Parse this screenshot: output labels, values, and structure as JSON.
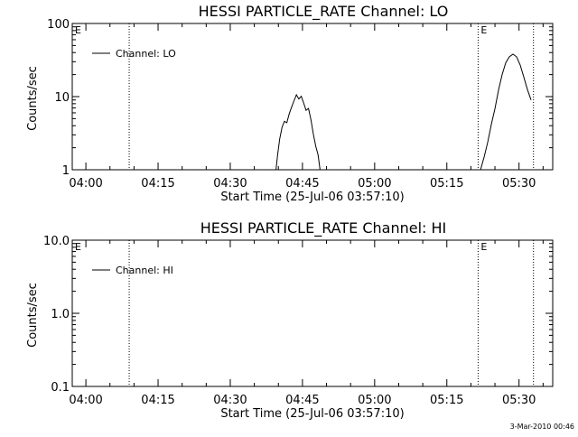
{
  "chart_data": [
    {
      "type": "line",
      "title": "HESSI PARTICLE_RATE Channel: LO",
      "xlabel": "Start Time (25-Jul-06 03:57:10)",
      "ylabel": "Counts/sec",
      "y_scale": "log",
      "ylim": [
        1,
        100
      ],
      "xlim": [
        "03:57:10",
        "05:37:00"
      ],
      "x_ticks": [
        "04:00",
        "04:15",
        "04:30",
        "04:45",
        "05:00",
        "05:15",
        "05:30"
      ],
      "y_ticks": [
        "1",
        "10",
        "100"
      ],
      "legend": "top-left",
      "markers": [
        {
          "label": "E",
          "x": "03:57:10"
        },
        {
          "label": "",
          "x": "04:09:00"
        },
        {
          "label": "E",
          "x": "05:21:30"
        },
        {
          "label": "",
          "x": "05:33:00"
        }
      ],
      "series": [
        {
          "name": "Channel: LO",
          "segments": [
            [
              {
                "x": "04:39:30",
                "y": 1.0
              },
              {
                "x": "04:39:50",
                "y": 1.6
              },
              {
                "x": "04:40:15",
                "y": 2.6
              },
              {
                "x": "04:40:45",
                "y": 3.8
              },
              {
                "x": "04:41:15",
                "y": 4.6
              },
              {
                "x": "04:41:45",
                "y": 4.4
              },
              {
                "x": "04:42:15",
                "y": 5.8
              },
              {
                "x": "04:42:45",
                "y": 7.2
              },
              {
                "x": "04:43:15",
                "y": 8.8
              },
              {
                "x": "04:43:45",
                "y": 10.6
              },
              {
                "x": "04:44:15",
                "y": 9.3
              },
              {
                "x": "04:44:45",
                "y": 10.1
              },
              {
                "x": "04:45:15",
                "y": 8.2
              },
              {
                "x": "04:45:45",
                "y": 6.5
              },
              {
                "x": "04:46:15",
                "y": 6.9
              },
              {
                "x": "04:46:45",
                "y": 4.9
              },
              {
                "x": "04:47:15",
                "y": 3.1
              },
              {
                "x": "04:47:45",
                "y": 2.1
              },
              {
                "x": "04:48:15",
                "y": 1.6
              },
              {
                "x": "04:48:40",
                "y": 1.0
              }
            ],
            [
              {
                "x": "05:22:00",
                "y": 1.0
              },
              {
                "x": "05:22:45",
                "y": 1.5
              },
              {
                "x": "05:23:30",
                "y": 2.4
              },
              {
                "x": "05:24:15",
                "y": 4.2
              },
              {
                "x": "05:25:00",
                "y": 6.9
              },
              {
                "x": "05:25:45",
                "y": 12.5
              },
              {
                "x": "05:26:30",
                "y": 20.0
              },
              {
                "x": "05:27:15",
                "y": 29.0
              },
              {
                "x": "05:28:00",
                "y": 35.0
              },
              {
                "x": "05:28:45",
                "y": 38.0
              },
              {
                "x": "05:29:30",
                "y": 35.0
              },
              {
                "x": "05:30:15",
                "y": 27.0
              },
              {
                "x": "05:31:00",
                "y": 18.5
              },
              {
                "x": "05:31:45",
                "y": 12.5
              },
              {
                "x": "05:32:30",
                "y": 9.0
              }
            ]
          ]
        }
      ]
    },
    {
      "type": "line",
      "title": "HESSI PARTICLE_RATE Channel: HI",
      "xlabel": "Start Time (25-Jul-06 03:57:10)",
      "ylabel": "Counts/sec",
      "y_scale": "log",
      "ylim": [
        0.1,
        10.0
      ],
      "xlim": [
        "03:57:10",
        "05:37:00"
      ],
      "x_ticks": [
        "04:00",
        "04:15",
        "04:30",
        "04:45",
        "05:00",
        "05:15",
        "05:30"
      ],
      "y_ticks": [
        "0.1",
        "1.0",
        "10.0"
      ],
      "legend": "top-left",
      "markers": [
        {
          "label": "E",
          "x": "03:57:10"
        },
        {
          "label": "",
          "x": "04:09:00"
        },
        {
          "label": "E",
          "x": "05:21:30"
        },
        {
          "label": "",
          "x": "05:33:00"
        }
      ],
      "series": [
        {
          "name": "Channel: HI",
          "segments": []
        }
      ]
    }
  ],
  "stamp": "3-Mar-2010 00:46"
}
